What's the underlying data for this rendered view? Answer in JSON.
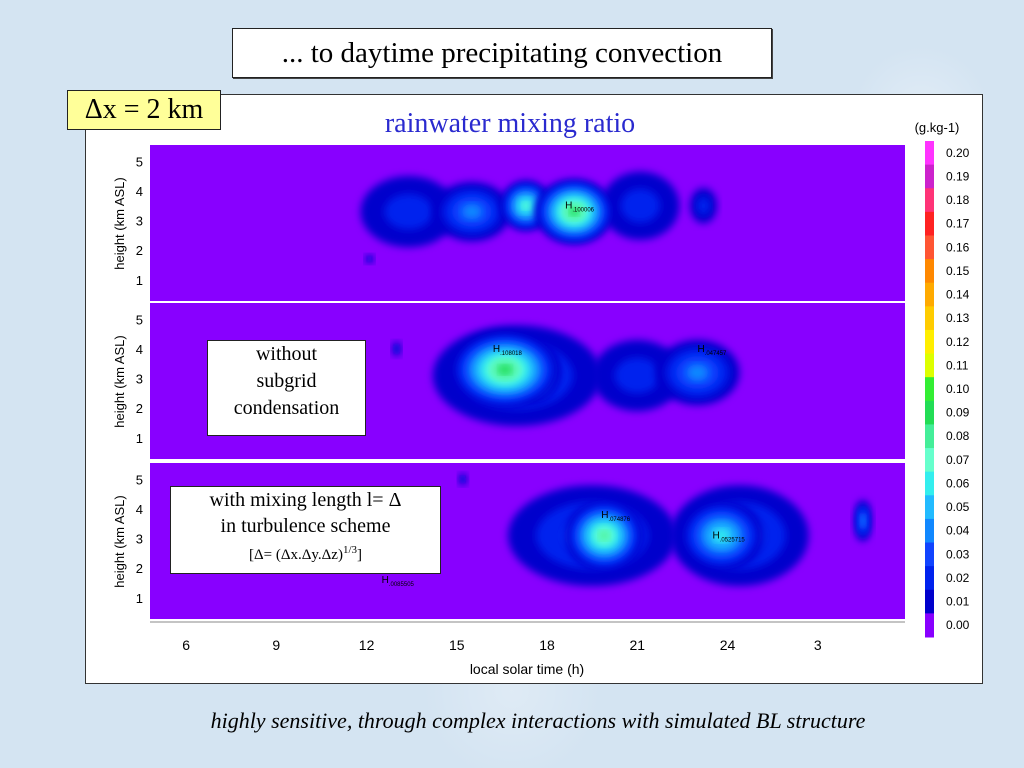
{
  "slide": {
    "heading": "... to daytime precipitating convection",
    "resolution_label": "Δx = 2 km",
    "footer": "highly sensitive, through complex interactions with simulated BL structure",
    "annotation_a": [
      "without",
      "subgrid",
      "condensation"
    ],
    "annotation_b": {
      "line1": "with mixing length l= Δ",
      "line2": "in turbulence scheme",
      "formula_main": "[Δ= (Δx.Δy.Δz)",
      "formula_exp": "1/3",
      "formula_close": "]"
    }
  },
  "chart_data": {
    "type": "heatmap",
    "title": "rainwater mixing ratio",
    "xlabel": "local solar time (h)",
    "ylabel": "height (km ASL)",
    "colorbar_unit": "(g.kg-1)",
    "x_ticks": [
      "6",
      "9",
      "12",
      "15",
      "18",
      "21",
      "24",
      "3"
    ],
    "y_ticks": [
      "1",
      "2",
      "3",
      "4",
      "5"
    ],
    "colorbar": {
      "labels": [
        "0.20",
        "0.19",
        "0.18",
        "0.17",
        "0.16",
        "0.15",
        "0.14",
        "0.13",
        "0.12",
        "0.11",
        "0.10",
        "0.09",
        "0.08",
        "0.07",
        "0.06",
        "0.05",
        "0.04",
        "0.03",
        "0.02",
        "0.01",
        "0.00"
      ],
      "colors": [
        "#ff33ff",
        "#cc22cc",
        "#ff3377",
        "#ff2222",
        "#ff5533",
        "#ff8800",
        "#ffaa00",
        "#ffcc00",
        "#ffee00",
        "#ddff00",
        "#33ee33",
        "#22dd55",
        "#44ee99",
        "#66ffcc",
        "#33eeee",
        "#22bbff",
        "#1188ff",
        "#1144ff",
        "#0022ee",
        "#0000cc",
        "#8800ff"
      ],
      "range": [
        0.0,
        0.2
      ]
    },
    "background_color": "#8800ff",
    "panels": [
      {
        "maxima": [
          {
            "label": "H",
            "value": ".100006",
            "x": 18.6,
            "y": 3.4
          }
        ],
        "cells": [
          {
            "x": 18.9,
            "y": 3.3,
            "w": 2.6,
            "h": 2.2,
            "v": 0.08
          },
          {
            "x": 17.3,
            "y": 3.5,
            "w": 1.7,
            "h": 1.7,
            "v": 0.06
          },
          {
            "x": 15.5,
            "y": 3.3,
            "w": 2.6,
            "h": 2.0,
            "v": 0.03
          },
          {
            "x": 13.4,
            "y": 3.3,
            "w": 3.2,
            "h": 2.4,
            "v": 0.01
          },
          {
            "x": 21.1,
            "y": 3.5,
            "w": 2.6,
            "h": 2.3,
            "v": 0.01
          },
          {
            "x": 23.2,
            "y": 3.5,
            "w": 0.9,
            "h": 1.2,
            "v": 0.01
          },
          {
            "x": 12.1,
            "y": 1.7,
            "w": 0.3,
            "h": 0.3,
            "v": 0.01
          }
        ]
      },
      {
        "maxima": [
          {
            "label": "H",
            "value": ".108018",
            "x": 16.2,
            "y": 3.9
          },
          {
            "label": "H",
            "value": ".047457",
            "x": 23.0,
            "y": 3.9
          }
        ],
        "cells": [
          {
            "x": 16.6,
            "y": 3.3,
            "w": 3.6,
            "h": 2.6,
            "v": 0.08
          },
          {
            "x": 17.6,
            "y": 3.2,
            "w": 1.6,
            "h": 2.0,
            "v": 0.07
          },
          {
            "x": 17.0,
            "y": 3.1,
            "w": 5.6,
            "h": 3.4,
            "v": 0.02
          },
          {
            "x": 23.0,
            "y": 3.2,
            "w": 2.8,
            "h": 2.2,
            "v": 0.03
          },
          {
            "x": 21.0,
            "y": 3.1,
            "w": 3.0,
            "h": 2.4,
            "v": 0.01
          },
          {
            "x": 13.0,
            "y": 4.0,
            "w": 0.3,
            "h": 0.5,
            "v": 0.01
          }
        ]
      },
      {
        "maxima": [
          {
            "label": "H",
            "value": ".074876",
            "x": 19.8,
            "y": 3.7
          },
          {
            "label": "H",
            "value": ".0525715",
            "x": 23.5,
            "y": 3.0
          },
          {
            "label": "H",
            "value": ".0085505",
            "x": 12.5,
            "y": 1.5
          }
        ],
        "cells": [
          {
            "x": 19.9,
            "y": 3.1,
            "w": 2.6,
            "h": 2.4,
            "v": 0.07
          },
          {
            "x": 23.8,
            "y": 3.1,
            "w": 2.8,
            "h": 2.4,
            "v": 0.05
          },
          {
            "x": 19.5,
            "y": 3.1,
            "w": 5.6,
            "h": 3.4,
            "v": 0.02
          },
          {
            "x": 24.4,
            "y": 3.1,
            "w": 4.6,
            "h": 3.4,
            "v": 0.02
          },
          {
            "x": 28.5,
            "y": 3.6,
            "w": 0.6,
            "h": 1.4,
            "v": 0.03
          },
          {
            "x": 15.2,
            "y": 5.0,
            "w": 0.3,
            "h": 0.4,
            "v": 0.01
          }
        ]
      }
    ]
  }
}
